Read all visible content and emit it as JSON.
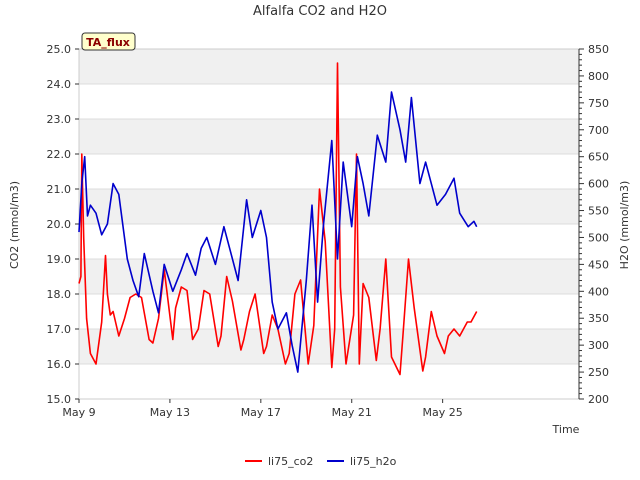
{
  "chart_data": {
    "type": "line",
    "title": "Alfalfa CO2 and H2O",
    "xlabel": "Time",
    "ylabel_left": "CO2 (mmol/m3)",
    "ylabel_right": "H2O (mmol/m3)",
    "badge": "TA_flux",
    "x_ticks": [
      "May 9",
      "May 13",
      "May 17",
      "May 21",
      "May 25"
    ],
    "ylim_left": [
      15.0,
      25.0
    ],
    "ylim_right": [
      200,
      850
    ],
    "y_ticks_left": [
      "15.0",
      "16.0",
      "17.0",
      "18.0",
      "19.0",
      "20.0",
      "21.0",
      "22.0",
      "23.0",
      "24.0",
      "25.0"
    ],
    "y_ticks_right": [
      "200",
      "250",
      "300",
      "350",
      "400",
      "450",
      "500",
      "550",
      "600",
      "650",
      "700",
      "750",
      "800",
      "850"
    ],
    "grid": true,
    "legend_position": "bottom-center",
    "series": [
      {
        "name": "li75_co2",
        "color": "#ff0000",
        "axis": "left",
        "x": [
          "2021-05-09T00:00",
          "2021-05-09T02:00",
          "2021-05-09T03:00",
          "2021-05-09T05:00",
          "2021-05-09T08:00",
          "2021-05-09T12:00",
          "2021-05-09T18:00",
          "2021-05-10T00:00",
          "2021-05-10T04:00",
          "2021-05-10T06:00",
          "2021-05-10T09:00",
          "2021-05-10T12:00",
          "2021-05-10T18:00",
          "2021-05-11T00:00",
          "2021-05-11T06:00",
          "2021-05-11T12:00",
          "2021-05-11T18:00",
          "2021-05-12T02:00",
          "2021-05-12T06:00",
          "2021-05-12T12:00",
          "2021-05-12T18:00",
          "2021-05-13T03:00",
          "2021-05-13T06:00",
          "2021-05-13T12:00",
          "2021-05-13T18:00",
          "2021-05-14T00:00",
          "2021-05-14T06:00",
          "2021-05-14T12:00",
          "2021-05-14T18:00",
          "2021-05-15T03:00",
          "2021-05-15T06:00",
          "2021-05-15T12:00",
          "2021-05-15T18:00",
          "2021-05-16T03:00",
          "2021-05-16T06:00",
          "2021-05-16T12:00",
          "2021-05-16T18:00",
          "2021-05-17T03:00",
          "2021-05-17T06:00",
          "2021-05-17T12:00",
          "2021-05-17T18:00",
          "2021-05-18T02:00",
          "2021-05-18T06:00",
          "2021-05-18T12:00",
          "2021-05-18T18:00",
          "2021-05-19T02:00",
          "2021-05-19T08:00",
          "2021-05-19T14:00",
          "2021-05-19T20:00",
          "2021-05-20T03:00",
          "2021-05-20T06:00",
          "2021-05-20T09:00",
          "2021-05-20T12:00",
          "2021-05-20T18:00",
          "2021-05-21T02:00",
          "2021-05-21T05:00",
          "2021-05-21T08:00",
          "2021-05-21T12:00",
          "2021-05-21T18:00",
          "2021-05-22T02:00",
          "2021-05-22T06:00",
          "2021-05-22T12:00",
          "2021-05-22T18:00",
          "2021-05-23T03:00",
          "2021-05-23T06:00",
          "2021-05-23T12:00",
          "2021-05-23T18:00",
          "2021-05-24T03:00",
          "2021-05-24T06:00",
          "2021-05-24T12:00",
          "2021-05-24T18:00",
          "2021-05-25T02:00",
          "2021-05-25T06:00",
          "2021-05-25T12:00",
          "2021-05-25T18:00",
          "2021-05-26T02:00",
          "2021-05-26T06:00",
          "2021-05-26T12:00"
        ],
        "values": [
          18.3,
          18.5,
          22.0,
          19.6,
          17.3,
          16.3,
          16.0,
          17.2,
          19.1,
          18.0,
          17.4,
          17.5,
          16.8,
          17.3,
          17.9,
          18.0,
          17.9,
          16.7,
          16.6,
          17.3,
          18.7,
          16.7,
          17.6,
          18.2,
          18.1,
          16.7,
          17.0,
          18.1,
          18.0,
          16.5,
          16.8,
          18.5,
          17.8,
          16.4,
          16.7,
          17.5,
          18.0,
          16.3,
          16.5,
          17.4,
          17.0,
          16.0,
          16.3,
          18.0,
          18.4,
          16.0,
          17.1,
          21.0,
          19.5,
          15.9,
          17.0,
          24.6,
          18.2,
          16.0,
          17.4,
          22.0,
          16.0,
          18.3,
          17.9,
          16.1,
          17.0,
          19.0,
          16.2,
          15.7,
          16.8,
          19.0,
          17.6,
          15.8,
          16.2,
          17.5,
          16.8,
          16.3,
          16.8,
          17.0,
          16.8,
          17.2,
          17.2,
          17.5
        ]
      },
      {
        "name": "li75_h2o",
        "color": "#0000cc",
        "axis": "right",
        "x": [
          "2021-05-09T00:00",
          "2021-05-09T03:00",
          "2021-05-09T06:00",
          "2021-05-09T09:00",
          "2021-05-09T12:00",
          "2021-05-09T18:00",
          "2021-05-10T00:00",
          "2021-05-10T06:00",
          "2021-05-10T12:00",
          "2021-05-10T18:00",
          "2021-05-11T03:00",
          "2021-05-11T09:00",
          "2021-05-11T15:00",
          "2021-05-11T21:00",
          "2021-05-12T06:00",
          "2021-05-12T12:00",
          "2021-05-12T18:00",
          "2021-05-13T03:00",
          "2021-05-13T12:00",
          "2021-05-13T18:00",
          "2021-05-14T03:00",
          "2021-05-14T09:00",
          "2021-05-14T15:00",
          "2021-05-15T00:00",
          "2021-05-15T09:00",
          "2021-05-15T15:00",
          "2021-05-16T00:00",
          "2021-05-16T09:00",
          "2021-05-16T15:00",
          "2021-05-17T00:00",
          "2021-05-17T06:00",
          "2021-05-17T12:00",
          "2021-05-17T18:00",
          "2021-05-18T03:00",
          "2021-05-18T09:00",
          "2021-05-18T15:00",
          "2021-05-19T00:00",
          "2021-05-19T06:00",
          "2021-05-19T12:00",
          "2021-05-19T18:00",
          "2021-05-20T03:00",
          "2021-05-20T09:00",
          "2021-05-20T15:00",
          "2021-05-21T00:00",
          "2021-05-21T06:00",
          "2021-05-21T12:00",
          "2021-05-21T18:00",
          "2021-05-22T03:00",
          "2021-05-22T12:00",
          "2021-05-22T18:00",
          "2021-05-23T03:00",
          "2021-05-23T09:00",
          "2021-05-23T15:00",
          "2021-05-24T00:00",
          "2021-05-24T06:00",
          "2021-05-24T12:00",
          "2021-05-24T18:00",
          "2021-05-25T03:00",
          "2021-05-25T12:00",
          "2021-05-25T18:00",
          "2021-05-26T03:00",
          "2021-05-26T09:00",
          "2021-05-26T12:00"
        ],
        "values": [
          510,
          600,
          650,
          540,
          560,
          545,
          505,
          525,
          600,
          580,
          460,
          420,
          390,
          470,
          400,
          360,
          450,
          400,
          440,
          470,
          430,
          480,
          500,
          450,
          520,
          480,
          420,
          570,
          500,
          550,
          500,
          380,
          330,
          360,
          300,
          250,
          420,
          560,
          380,
          520,
          680,
          460,
          640,
          520,
          650,
          600,
          540,
          690,
          640,
          770,
          700,
          640,
          760,
          600,
          640,
          600,
          560,
          580,
          610,
          545,
          520,
          530,
          520
        ]
      }
    ]
  }
}
